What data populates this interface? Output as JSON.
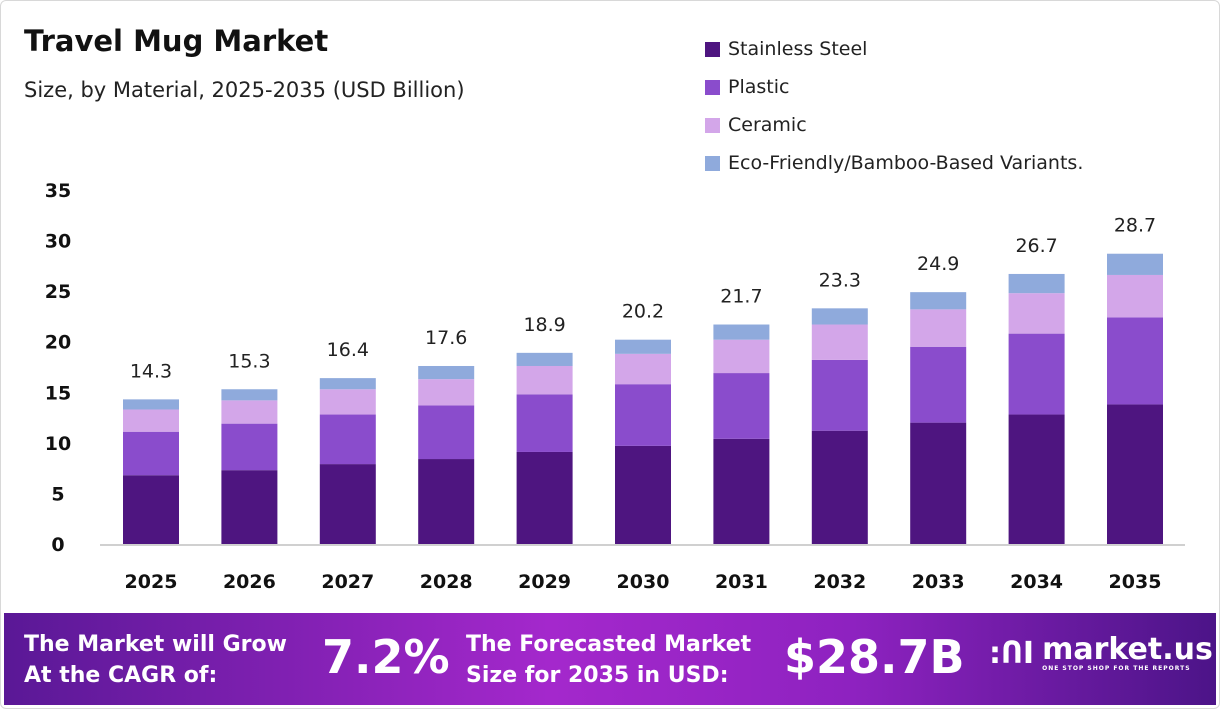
{
  "header": {
    "title": "Travel Mug Market",
    "subtitle": "Size, by Material, 2025-2035 (USD Billion)"
  },
  "colors": {
    "stainless": "#4e1580",
    "plastic": "#8a4ccc",
    "ceramic": "#d3a6e9",
    "eco": "#8faadc"
  },
  "chart_data": {
    "type": "bar",
    "stacked": true,
    "title": "Travel Mug Market",
    "subtitle": "Size, by Material, 2025-2035 (USD Billion)",
    "categories": [
      "2025",
      "2026",
      "2027",
      "2028",
      "2029",
      "2030",
      "2031",
      "2032",
      "2033",
      "2034",
      "2035"
    ],
    "series": [
      {
        "name": "Stainless Steel",
        "values": [
          6.8,
          7.3,
          7.9,
          8.4,
          9.1,
          9.7,
          10.4,
          11.2,
          12.0,
          12.8,
          13.8
        ]
      },
      {
        "name": "Plastic",
        "values": [
          4.3,
          4.6,
          4.9,
          5.3,
          5.7,
          6.1,
          6.5,
          7.0,
          7.5,
          8.0,
          8.6
        ]
      },
      {
        "name": "Ceramic",
        "values": [
          2.2,
          2.3,
          2.5,
          2.6,
          2.8,
          3.0,
          3.3,
          3.5,
          3.7,
          4.0,
          4.2
        ]
      },
      {
        "name": "Eco-Friendly/Bamboo-Based Variants.",
        "values": [
          1.0,
          1.1,
          1.1,
          1.3,
          1.3,
          1.4,
          1.5,
          1.6,
          1.7,
          1.9,
          2.1
        ]
      }
    ],
    "totals": [
      "14.3",
      "15.3",
      "16.4",
      "17.6",
      "18.9",
      "20.2",
      "21.7",
      "23.3",
      "24.9",
      "26.7",
      "28.7"
    ],
    "yticks": [
      "0",
      "5",
      "10",
      "15",
      "20",
      "25",
      "30",
      "35"
    ],
    "ylim": [
      0,
      35
    ],
    "grid": false,
    "legend": "top-right",
    "xlabel": "",
    "ylabel": ""
  },
  "banner": {
    "cagr_label_1": "The Market will Grow",
    "cagr_label_2": "At the CAGR of:",
    "cagr_value": "7.2%",
    "forecast_label_1": "The Forecasted Market",
    "forecast_label_2": "Size for 2035 in USD:",
    "forecast_value": "$28.7B",
    "logo_name": "market.us",
    "logo_tagline": "ONE STOP SHOP FOR THE REPORTS"
  }
}
